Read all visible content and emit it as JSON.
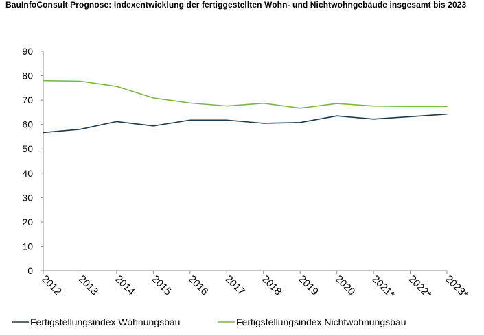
{
  "chart_data": {
    "type": "line",
    "title": "BauInfoConsult Prognose: Indexentwicklung der fertiggestellten Wohn- und Nichtwohngebäude insgesamt bis 2023",
    "xlabel": "",
    "ylabel": "",
    "categories": [
      "2012",
      "2013",
      "2014",
      "2015",
      "2016",
      "2017",
      "2018",
      "2019",
      "2020",
      "2021*",
      "2022*",
      "2023*"
    ],
    "ylim": [
      0,
      90
    ],
    "yticks": [
      "0",
      "10",
      "20",
      "30",
      "40",
      "50",
      "60",
      "70",
      "80",
      "90"
    ],
    "grid": false,
    "legend_position": "bottom",
    "series": [
      {
        "name": "Fertigstellungsindex Wohnungsbau",
        "color": "#1c3a48",
        "values": [
          56.7,
          58.0,
          61.2,
          59.4,
          61.8,
          61.8,
          60.5,
          60.8,
          63.5,
          62.2,
          63.2,
          64.2
        ]
      },
      {
        "name": "Fertigstellungsindex Nichtwohnungsbau",
        "color": "#7ab648",
        "values": [
          78.0,
          77.8,
          75.6,
          70.9,
          68.8,
          67.6,
          68.7,
          66.7,
          68.6,
          67.6,
          67.4,
          67.4
        ]
      }
    ]
  }
}
